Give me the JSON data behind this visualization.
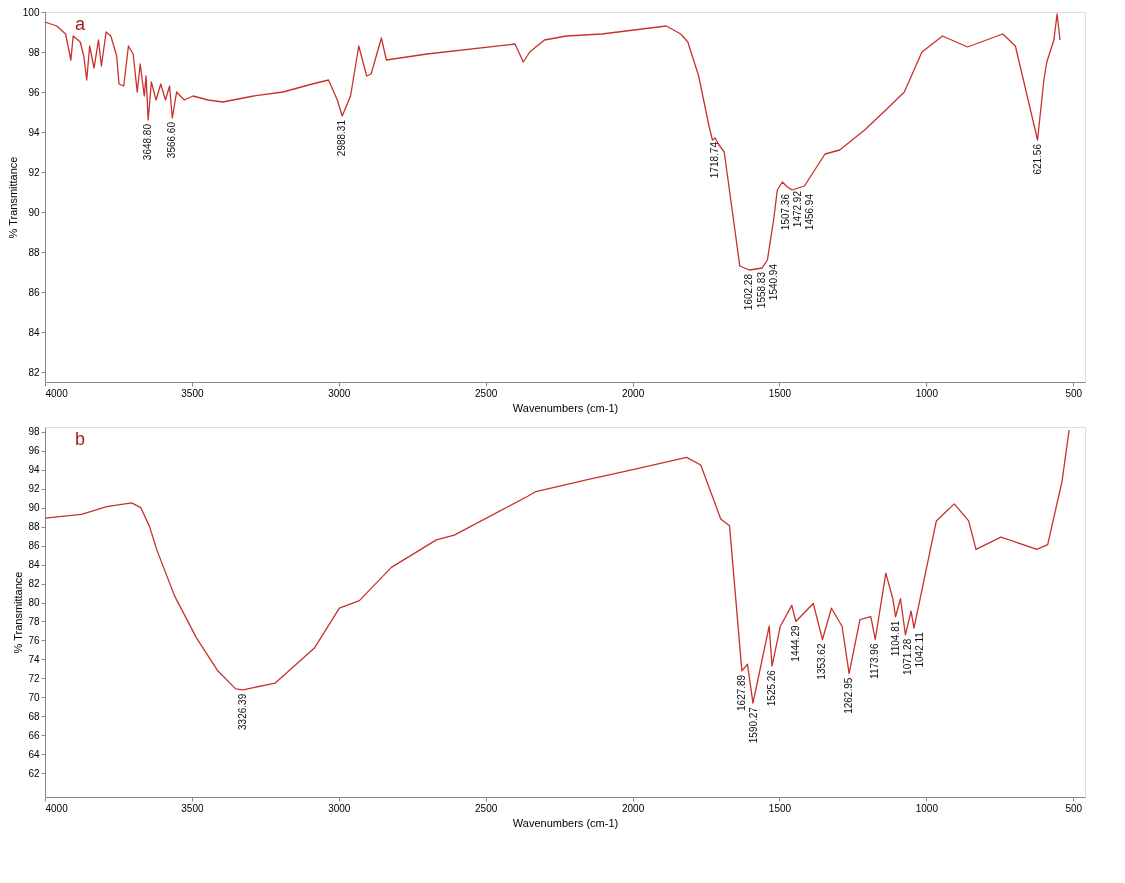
{
  "chart_data": [
    {
      "type": "line",
      "xlabel": "Wavenumbers (cm-1)",
      "ylabel": "% Transmittance",
      "xlim": [
        4000,
        460
      ],
      "xticks": [
        4000,
        3500,
        3000,
        2500,
        2000,
        1500,
        1000,
        500
      ],
      "ylim": [
        81.5,
        100
      ],
      "yticks": [
        82,
        84,
        86,
        88,
        90,
        92,
        94,
        96,
        98,
        100
      ],
      "grid": false,
      "x": [
        4000,
        3960,
        3930,
        3912,
        3904,
        3880,
        3868,
        3858,
        3848,
        3833,
        3818,
        3808,
        3792,
        3776,
        3756,
        3748,
        3732,
        3716,
        3700,
        3686,
        3676,
        3662,
        3656,
        3648.8,
        3638,
        3622,
        3606,
        3590,
        3576,
        3566.6,
        3552,
        3526,
        3496,
        3445,
        3395,
        3290,
        3190,
        3090,
        3035,
        3005,
        2988.31,
        2960,
        2932,
        2905,
        2890,
        2855,
        2838,
        2700,
        2400,
        2372,
        2350,
        2300,
        2225,
        2105,
        1885,
        1836,
        1812,
        1775,
        1740,
        1728,
        1718.74,
        1708,
        1688,
        1635,
        1602.28,
        1558.83,
        1540.94,
        1520,
        1507.36,
        1490,
        1472.92,
        1456.94,
        1415,
        1345,
        1295,
        1210,
        1138,
        1075,
        1015,
        945,
        860,
        740,
        697,
        660,
        621.56,
        600,
        590,
        566,
        555,
        545
      ],
      "series": [
        {
          "color": "#c8312b",
          "values": [
            99.5,
            99.3,
            98.9,
            97.6,
            98.8,
            98.5,
            97.8,
            96.6,
            98.3,
            97.2,
            98.6,
            97.3,
            99.0,
            98.8,
            97.8,
            96.4,
            96.3,
            98.3,
            97.9,
            96.0,
            97.4,
            95.8,
            96.8,
            94.6,
            96.5,
            95.6,
            96.4,
            95.6,
            96.3,
            94.7,
            96.0,
            95.6,
            95.8,
            95.6,
            95.5,
            95.8,
            96.0,
            96.4,
            96.6,
            95.6,
            94.8,
            95.8,
            98.3,
            96.8,
            96.9,
            98.7,
            97.6,
            97.9,
            98.4,
            97.5,
            98.0,
            98.6,
            98.8,
            98.9,
            99.3,
            98.9,
            98.5,
            96.8,
            94.3,
            93.6,
            93.7,
            93.4,
            93.0,
            87.3,
            87.1,
            87.2,
            87.6,
            89.6,
            91.1,
            91.5,
            91.25,
            91.1,
            91.3,
            92.9,
            93.1,
            94.1,
            95.1,
            96.0,
            98.0,
            98.8,
            98.25,
            98.9,
            98.3,
            96.0,
            93.6,
            96.6,
            97.5,
            98.6,
            99.9,
            98.6
          ]
        }
      ],
      "annotations": [
        "a",
        {
          "text": "3648.80",
          "x": 3648.8,
          "y": 94.6
        },
        {
          "text": "3566.60",
          "x": 3566.6,
          "y": 94.7
        },
        {
          "text": "2988.31",
          "x": 2988.31,
          "y": 94.8
        },
        {
          "text": "1718.74",
          "x": 1718.74,
          "y": 93.7
        },
        {
          "text": "1602.28",
          "x": 1602.28,
          "y": 87.1
        },
        {
          "text": "1558.83",
          "x": 1558.83,
          "y": 87.2
        },
        {
          "text": "1540.94",
          "x": 1540.94,
          "y": 87.6
        },
        {
          "text": "1507.36",
          "x": 1507.36,
          "y": 91.1
        },
        {
          "text": "1472.92",
          "x": 1472.92,
          "y": 91.25
        },
        {
          "text": "1456.94",
          "x": 1456.94,
          "y": 91.1
        },
        {
          "text": "621.56",
          "x": 621.56,
          "y": 93.6
        }
      ]
    },
    {
      "type": "line",
      "xlabel": "Wavenumbers (cm-1)",
      "ylabel": "% Transmittance",
      "xlim": [
        4000,
        460
      ],
      "xticks": [
        4000,
        3500,
        3000,
        2500,
        2000,
        1500,
        1000,
        500
      ],
      "ylim": [
        59.5,
        98.5
      ],
      "yticks": [
        62,
        64,
        66,
        68,
        70,
        72,
        74,
        76,
        78,
        80,
        82,
        84,
        86,
        88,
        90,
        92,
        94,
        96,
        98
      ],
      "grid": false,
      "x": [
        4000,
        3876,
        3790,
        3705,
        3674,
        3644,
        3620,
        3559,
        3485,
        3412,
        3351,
        3326.39,
        3217,
        3083,
        2998,
        2930,
        2821,
        2668,
        2607,
        2357,
        2329,
        2146,
        1999,
        1816,
        1768,
        1719,
        1700,
        1670,
        1627.89,
        1609,
        1590.27,
        1535,
        1525.26,
        1497,
        1458,
        1444.29,
        1385,
        1353.62,
        1323,
        1287,
        1262.95,
        1226,
        1189,
        1173.96,
        1138,
        1114,
        1104.81,
        1088,
        1071.28,
        1052,
        1042.11,
        966,
        905,
        856,
        831,
        746,
        624,
        587,
        538,
        514
      ],
      "series": [
        {
          "color": "#c8312b",
          "values": [
            88.9,
            89.3,
            90.1,
            90.5,
            90.0,
            88.0,
            85.6,
            80.7,
            76.3,
            72.8,
            70.9,
            70.8,
            71.5,
            75.2,
            79.4,
            80.2,
            83.7,
            86.6,
            87.1,
            91.2,
            91.7,
            93.0,
            94.0,
            95.3,
            94.5,
            90.4,
            88.8,
            88.1,
            72.8,
            73.5,
            69.4,
            77.5,
            73.3,
            77.5,
            79.7,
            78.0,
            79.9,
            76.1,
            79.4,
            77.5,
            72.5,
            78.2,
            78.5,
            76.1,
            83.1,
            80.4,
            78.5,
            80.4,
            76.6,
            79.1,
            77.3,
            88.6,
            90.4,
            88.6,
            85.6,
            86.9,
            85.6,
            86.1,
            92.8,
            98.2
          ]
        }
      ],
      "annotations": [
        "b",
        {
          "text": "3326.39",
          "x": 3326.39,
          "y": 70.8
        },
        {
          "text": "1627.89",
          "x": 1627.89,
          "y": 72.8
        },
        {
          "text": "1590.27",
          "x": 1590.27,
          "y": 69.4
        },
        {
          "text": "1525.26",
          "x": 1525.26,
          "y": 73.3
        },
        {
          "text": "1444.29",
          "x": 1444.29,
          "y": 78.0
        },
        {
          "text": "1353.62",
          "x": 1353.62,
          "y": 76.1
        },
        {
          "text": "1262.95",
          "x": 1262.95,
          "y": 72.5
        },
        {
          "text": "1173.96",
          "x": 1173.96,
          "y": 76.1
        },
        {
          "text": "1104.81",
          "x": 1104.81,
          "y": 78.5
        },
        {
          "text": "1071.28",
          "x": 1071.28,
          "y": 76.6
        },
        {
          "text": "1042.11",
          "x": 1042.11,
          "y": 77.3
        }
      ]
    }
  ]
}
